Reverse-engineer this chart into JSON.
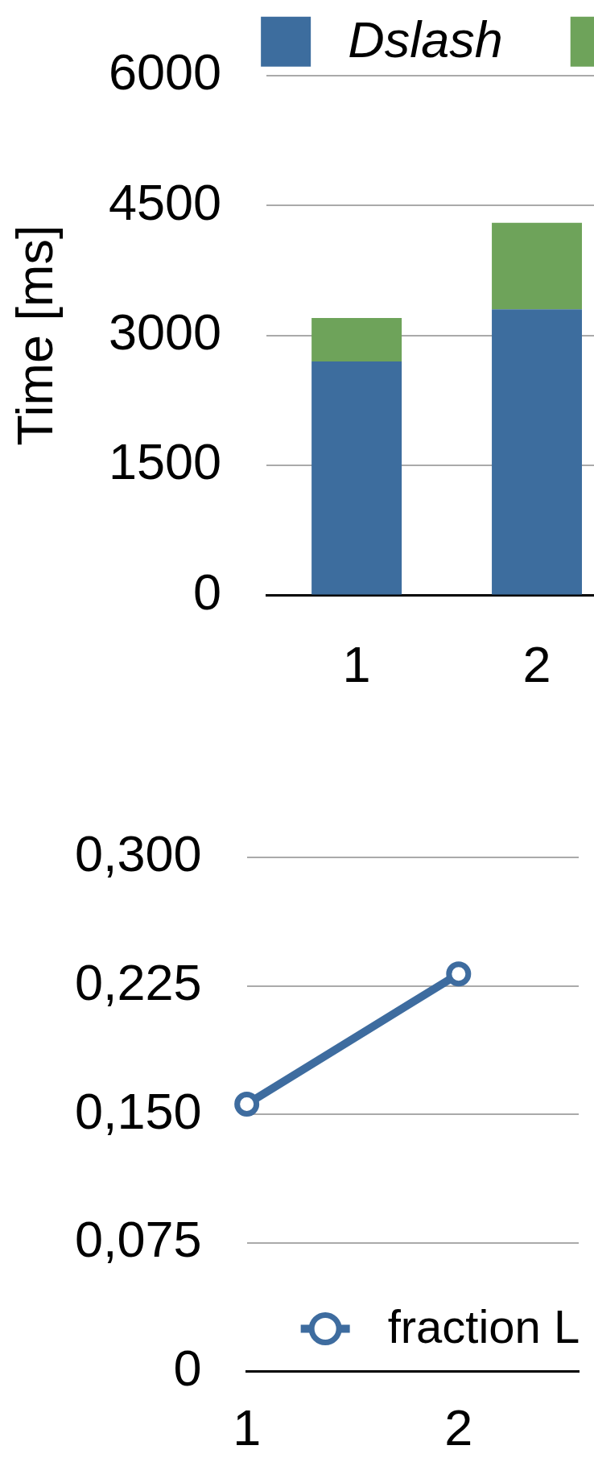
{
  "chart_data": [
    {
      "type": "bar",
      "stacked": true,
      "ylabel": "Time [ms]",
      "categories": [
        "1",
        "2"
      ],
      "series": [
        {
          "name": "Dslash",
          "color": "#3d6d9e",
          "values": [
            2700,
            3300
          ]
        },
        {
          "color": "#6ea35a",
          "values": [
            500,
            1000
          ]
        }
      ],
      "ylim": [
        0,
        6000
      ],
      "yticks": [
        0,
        1500,
        3000,
        4500,
        6000
      ],
      "grid": "y",
      "legend": "top"
    },
    {
      "type": "line",
      "x": [
        1,
        2
      ],
      "xlim": [
        1,
        2.567
      ],
      "xticks": [
        1,
        2
      ],
      "series": [
        {
          "name": "fraction L",
          "color": "#3e6c9f",
          "values": [
            0.156,
            0.232
          ]
        }
      ],
      "ylim": [
        0,
        0.3
      ],
      "yticks": [
        0,
        {
          "value": 0.075,
          "label": "0,075"
        },
        {
          "value": 0.15,
          "label": "0,150"
        },
        {
          "value": 0.225,
          "label": "0,225"
        },
        {
          "value": 0.3,
          "label": "0,300"
        }
      ],
      "grid": "y",
      "legend": "bottom",
      "marker": "circle"
    }
  ]
}
